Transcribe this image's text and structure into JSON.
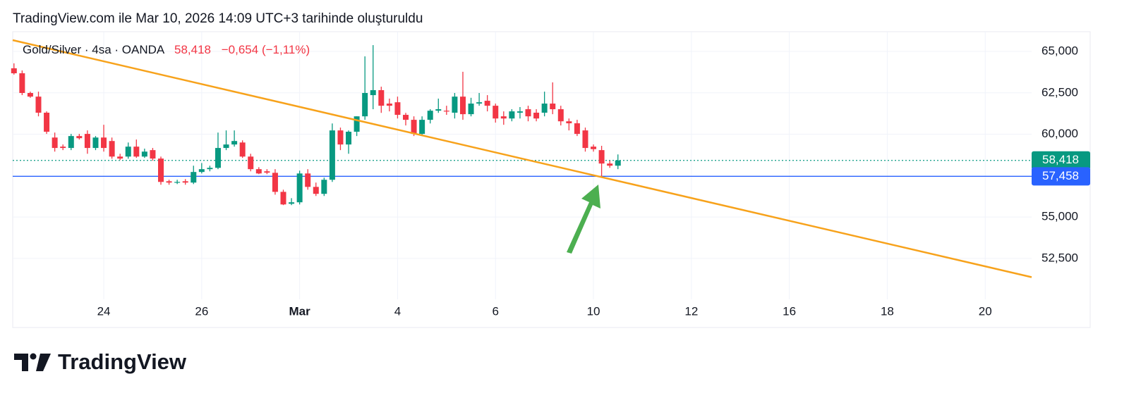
{
  "header": "TradingView.com ile Mar 10, 2026 14:09 UTC+3 tarihinde oluşturuldu",
  "brand": "TradingView",
  "chart_data": {
    "type": "candlestick",
    "title": "Gold/Silver · 4sa · OANDA",
    "last_price": "58,418",
    "change": "−0,654 (−1,11%)",
    "up_color": "#089981",
    "down_color": "#f23645",
    "grid": true,
    "ylim": [
      50030,
      66190
    ],
    "yticks": [
      {
        "value": 52500,
        "label": "52,500"
      },
      {
        "value": 55000,
        "label": "55,000"
      },
      {
        "value": 60000,
        "label": "60,000"
      },
      {
        "value": 62500,
        "label": "62,500"
      },
      {
        "value": 65000,
        "label": "65,000"
      }
    ],
    "categories": [
      null,
      null,
      null,
      null,
      null,
      null,
      null,
      null,
      null,
      null,
      null,
      "24",
      null,
      null,
      null,
      null,
      null,
      null,
      null,
      null,
      null,
      null,
      null,
      "26",
      null,
      null,
      null,
      null,
      null,
      null,
      null,
      null,
      null,
      null,
      null,
      "Mar",
      null,
      null,
      null,
      null,
      null,
      null,
      null,
      null,
      null,
      null,
      null,
      "4",
      null,
      null,
      null,
      null,
      null,
      null,
      null,
      null,
      null,
      null,
      null,
      "6",
      null,
      null,
      null,
      null,
      null,
      null,
      null,
      null,
      null,
      null,
      null,
      "10",
      null,
      null,
      null,
      null,
      null,
      null,
      null,
      null,
      null,
      null,
      null,
      "12",
      null,
      null,
      null,
      null,
      null,
      null,
      null,
      null,
      null,
      null,
      null,
      "16",
      null,
      null,
      null,
      null,
      null,
      null,
      null,
      null,
      null,
      null,
      null,
      "18",
      null,
      null,
      null,
      null,
      null,
      null,
      null,
      null,
      null,
      null,
      null,
      "20",
      null,
      null,
      null,
      null,
      null
    ],
    "open": [
      63980,
      63680,
      62490,
      62270,
      61300,
      59800,
      59250,
      59170,
      59890,
      60020,
      59170,
      59800,
      59590,
      58650,
      58650,
      59250,
      58650,
      59040,
      58530,
      57160,
      57080,
      57160,
      57080,
      57720,
      57890,
      57970,
      59170,
      59380,
      59500,
      58650,
      57890,
      57760,
      57670,
      56520,
      55800,
      55890,
      57630,
      56820,
      56400,
      57250,
      60230,
      59380,
      60150,
      61080,
      62360,
      62660,
      61850,
      61930,
      61170,
      60870,
      60020,
      60870,
      61420,
      61420,
      61300,
      62270,
      61210,
      61850,
      62020,
      61720,
      61080,
      60950,
      61300,
      61510,
      61300,
      61300,
      61850,
      61510,
      60780,
      60660,
      60230,
      59250,
      59040,
      58230,
      58100,
      null,
      null,
      null,
      null,
      null,
      null,
      null,
      null,
      null,
      null,
      null,
      null,
      null,
      null,
      null,
      null,
      null,
      null,
      null,
      null,
      null,
      null,
      null,
      null,
      null,
      null,
      null,
      null,
      null,
      null,
      null,
      null,
      null,
      null,
      null,
      null,
      null,
      null,
      null,
      null,
      null,
      null,
      null,
      null,
      null,
      null,
      null,
      null,
      null,
      null
    ],
    "high": [
      64280,
      63850,
      62570,
      62570,
      61380,
      60100,
      59380,
      60020,
      60020,
      60230,
      59890,
      60570,
      59800,
      58820,
      59500,
      59680,
      59130,
      59170,
      58650,
      57250,
      57250,
      57290,
      58100,
      58260,
      58100,
      60100,
      60230,
      60230,
      59630,
      58820,
      58010,
      57890,
      57890,
      56650,
      56140,
      57800,
      57890,
      57080,
      57380,
      60650,
      60400,
      60230,
      61080,
      64700,
      65380,
      62870,
      62150,
      62270,
      61290,
      61080,
      61080,
      61510,
      62150,
      61720,
      62490,
      63770,
      62200,
      62490,
      62360,
      61850,
      61380,
      61510,
      61640,
      61720,
      61510,
      62570,
      63130,
      61720,
      60950,
      60870,
      60400,
      59380,
      59300,
      58400,
      58780,
      null,
      null,
      null,
      null,
      null,
      null,
      null,
      null,
      null,
      null,
      null,
      null,
      null,
      null,
      null,
      null,
      null,
      null,
      null,
      null,
      null,
      null,
      null,
      null,
      null,
      null,
      null,
      null,
      null,
      null,
      null,
      null,
      null,
      null,
      null,
      null,
      null,
      null,
      null,
      null,
      null,
      null,
      null,
      null,
      null,
      null,
      null,
      null,
      null,
      null
    ],
    "low": [
      63600,
      62360,
      62200,
      61080,
      60020,
      58950,
      59040,
      59040,
      59680,
      58820,
      59040,
      58950,
      58520,
      58440,
      58520,
      58570,
      58570,
      58400,
      56950,
      56950,
      56990,
      56950,
      56990,
      57630,
      57760,
      57890,
      59040,
      59250,
      58570,
      57760,
      57590,
      57590,
      56350,
      55720,
      55720,
      55760,
      56650,
      56270,
      56270,
      57120,
      59040,
      58820,
      59890,
      60870,
      61510,
      61290,
      61380,
      60950,
      60530,
      59890,
      59890,
      60650,
      61290,
      61170,
      60950,
      60870,
      61080,
      61720,
      61380,
      60700,
      60570,
      60780,
      60950,
      60780,
      60780,
      61080,
      61210,
      60530,
      60230,
      59890,
      58950,
      58950,
      57380,
      57970,
      57890,
      null,
      null,
      null,
      null,
      null,
      null,
      null,
      null,
      null,
      null,
      null,
      null,
      null,
      null,
      null,
      null,
      null,
      null,
      null,
      null,
      null,
      null,
      null,
      null,
      null,
      null,
      null,
      null,
      null,
      null,
      null,
      null,
      null,
      null,
      null,
      null,
      null,
      null,
      null,
      null,
      null,
      null,
      null,
      null,
      null,
      null,
      null,
      null,
      null,
      null
    ],
    "close": [
      63680,
      62490,
      62270,
      61300,
      60150,
      59170,
      59170,
      59890,
      59760,
      59170,
      59800,
      59170,
      58650,
      58530,
      59250,
      58650,
      58950,
      58530,
      57120,
      57080,
      57120,
      57080,
      57720,
      57890,
      57970,
      59170,
      59380,
      59590,
      58650,
      57890,
      57630,
      57680,
      56520,
      55760,
      55890,
      57630,
      56820,
      56400,
      57250,
      60230,
      59380,
      60150,
      61080,
      62490,
      62660,
      61720,
      61720,
      61170,
      60870,
      60020,
      60870,
      61420,
      61510,
      61380,
      62270,
      61210,
      61850,
      61930,
      61720,
      60950,
      60950,
      61380,
      61380,
      61080,
      60950,
      61850,
      61510,
      60780,
      60660,
      60020,
      59170,
      59100,
      58230,
      58100,
      58418,
      null,
      null,
      null,
      null,
      null,
      null,
      null,
      null,
      null,
      null,
      null,
      null,
      null,
      null,
      null,
      null,
      null,
      null,
      null,
      null,
      null,
      null,
      null,
      null,
      null,
      null,
      null,
      null,
      null,
      null,
      null,
      null,
      null,
      null,
      null,
      null,
      null,
      null,
      null,
      null,
      null,
      null,
      null,
      null,
      null,
      null,
      null,
      null,
      null,
      null
    ],
    "price_lines": [
      {
        "value": 58418,
        "label": "58,418",
        "color": "#089981",
        "style": "dotted"
      },
      {
        "value": 57458,
        "label": "57,458",
        "color": "#2962ff",
        "style": "solid"
      }
    ],
    "trendline": {
      "color": "#f7a21b",
      "from": 65680,
      "to": 51370
    }
  }
}
